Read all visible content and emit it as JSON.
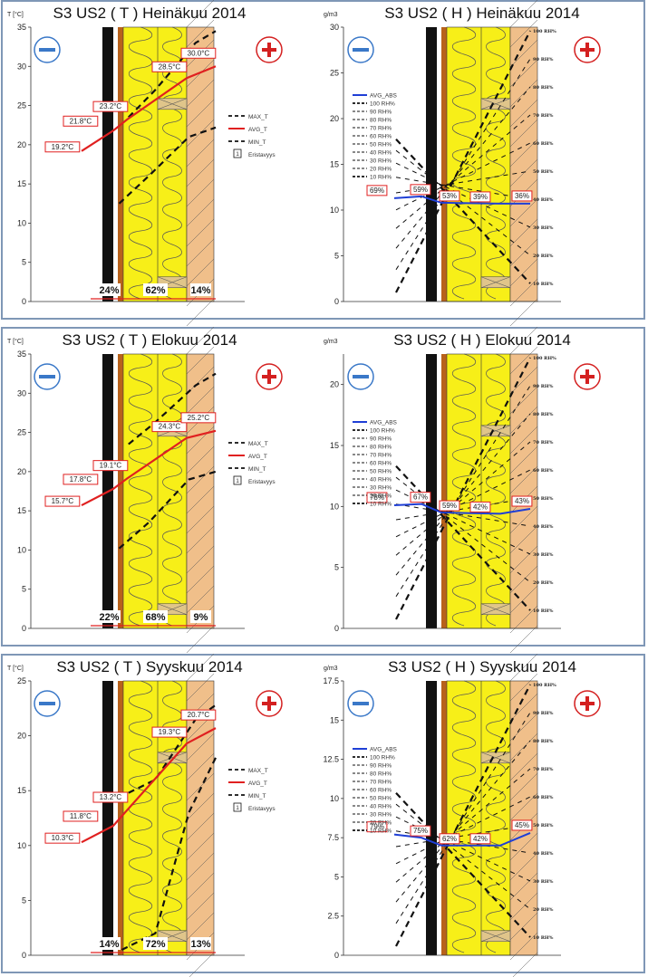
{
  "charts": [
    {
      "temp": {
        "title": "S3 US2 ( T ) Heinäkuu 2014",
        "ylabel": "T [°C]",
        "yticks": [
          "0",
          "5",
          "10",
          "15",
          "20",
          "25",
          "30",
          "35"
        ],
        "avg_labels": [
          "19.2°C",
          "21.8°C",
          "23.2°C",
          "28.5°C",
          "30.0°C"
        ],
        "pct": [
          "24%",
          "62%",
          "14%"
        ]
      },
      "hum": {
        "title": "S3 US2 ( H ) Heinäkuu 2014",
        "ylabel": "g/m3",
        "yticks": [
          "0",
          "5",
          "10",
          "15",
          "20",
          "25",
          "30"
        ],
        "rh_labels": [
          "69%",
          "59%",
          "53%",
          "39%",
          "36%"
        ]
      }
    },
    {
      "temp": {
        "title": "S3 US2 ( T ) Elokuu 2014",
        "ylabel": "T [°C]",
        "yticks": [
          "0",
          "5",
          "10",
          "15",
          "20",
          "25",
          "30",
          "35"
        ],
        "avg_labels": [
          "15.7°C",
          "17.8°C",
          "19.1°C",
          "24.3°C",
          "25.2°C"
        ],
        "pct": [
          "22%",
          "68%",
          "9%"
        ]
      },
      "hum": {
        "title": "S3 US2 ( H ) Elokuu 2014",
        "ylabel": "g/m3",
        "yticks": [
          "0",
          "5",
          "10",
          "15",
          "20"
        ],
        "rh_labels": [
          "78%",
          "67%",
          "59%",
          "42%",
          "43%"
        ]
      }
    },
    {
      "temp": {
        "title": "S3 US2 ( T ) Syyskuu 2014",
        "ylabel": "T [°C]",
        "yticks": [
          "0",
          "5",
          "10",
          "15",
          "20",
          "25"
        ],
        "avg_labels": [
          "10.3°C",
          "11.8°C",
          "13.2°C",
          "19.3°C",
          "20.7°C"
        ],
        "pct": [
          "14%",
          "72%",
          "13%"
        ]
      },
      "hum": {
        "title": "S3 US2 ( H ) Syyskuu 2014",
        "ylabel": "g/m3",
        "yticks": [
          "0",
          "2.5",
          "5",
          "7.5",
          "10",
          "12.5",
          "15",
          "17.5"
        ],
        "rh_labels": [
          "79%",
          "75%",
          "62%",
          "42%",
          "45%"
        ]
      }
    }
  ],
  "legend_temp": [
    "MAX_T",
    "AVG_T",
    "MIN_T",
    "Eristavyys"
  ],
  "legend_temp_box": "1",
  "legend_hum": [
    "AVG_ABS",
    "100 RH%",
    "90 RH%",
    "80 RH%",
    "70 RH%",
    "60 RH%",
    "50 RH%",
    "40 RH%",
    "30 RH%",
    "20 RH%",
    "10 RH%"
  ],
  "rh_scale": [
    "100 RH%",
    "90 RH%",
    "80 RH%",
    "70 RH%",
    "60 RH%",
    "50 RH%",
    "40 RH%",
    "30 RH%",
    "20 RH%",
    "10 RH%"
  ],
  "minus_symbol": "−",
  "plus_symbol": "+",
  "colors": {
    "frame": "#7f97b6",
    "avg_temp": "#e02020",
    "avg_abs": "#1f3fd6",
    "insulation": "#f7ef18",
    "wood": "#f0bf8a",
    "board": "#b8621b",
    "membrane": "#111111",
    "minus": "#3a78c8",
    "plus": "#d42020"
  },
  "chart_data": [
    {
      "type": "line",
      "title": "S3 US2 ( T ) Heinäkuu 2014",
      "ylabel": "T [°C]",
      "ylim": [
        0,
        35
      ],
      "series": [
        {
          "name": "AVG_T",
          "values": [
            19.2,
            21.8,
            23.2,
            28.5,
            30.0
          ]
        }
      ],
      "annotations": [
        "24%",
        "62%",
        "14%"
      ]
    },
    {
      "type": "line",
      "title": "S3 US2 ( H ) Heinäkuu 2014",
      "ylabel": "g/m3",
      "ylim": [
        0,
        30
      ],
      "series": [
        {
          "name": "AVG_ABS",
          "values": [
            11.3,
            11.5,
            10.8,
            10.7,
            10.7
          ]
        }
      ],
      "annotations": [
        "69%",
        "59%",
        "53%",
        "39%",
        "36%"
      ]
    },
    {
      "type": "line",
      "title": "S3 US2 ( T ) Elokuu 2014",
      "ylabel": "T [°C]",
      "ylim": [
        0,
        35
      ],
      "series": [
        {
          "name": "AVG_T",
          "values": [
            15.7,
            17.8,
            19.1,
            24.3,
            25.2
          ]
        }
      ],
      "annotations": [
        "22%",
        "68%",
        "9%"
      ]
    },
    {
      "type": "line",
      "title": "S3 US2 ( H ) Elokuu 2014",
      "ylabel": "g/m3",
      "ylim": [
        0,
        22.5
      ],
      "series": [
        {
          "name": "AVG_ABS",
          "values": [
            10.1,
            10.2,
            9.5,
            9.4,
            9.8
          ]
        }
      ],
      "annotations": [
        "78%",
        "67%",
        "59%",
        "42%",
        "43%"
      ]
    },
    {
      "type": "line",
      "title": "S3 US2 ( T ) Syyskuu 2014",
      "ylabel": "T [°C]",
      "ylim": [
        0,
        25
      ],
      "series": [
        {
          "name": "AVG_T",
          "values": [
            10.3,
            11.8,
            13.2,
            19.3,
            20.7
          ]
        }
      ],
      "annotations": [
        "14%",
        "72%",
        "13%"
      ]
    },
    {
      "type": "line",
      "title": "S3 US2 ( H ) Syyskuu 2014",
      "ylabel": "g/m3",
      "ylim": [
        0,
        17.5
      ],
      "series": [
        {
          "name": "AVG_ABS",
          "values": [
            7.7,
            7.5,
            7.0,
            7.0,
            7.8
          ]
        }
      ],
      "annotations": [
        "79%",
        "75%",
        "62%",
        "42%",
        "45%"
      ]
    }
  ]
}
